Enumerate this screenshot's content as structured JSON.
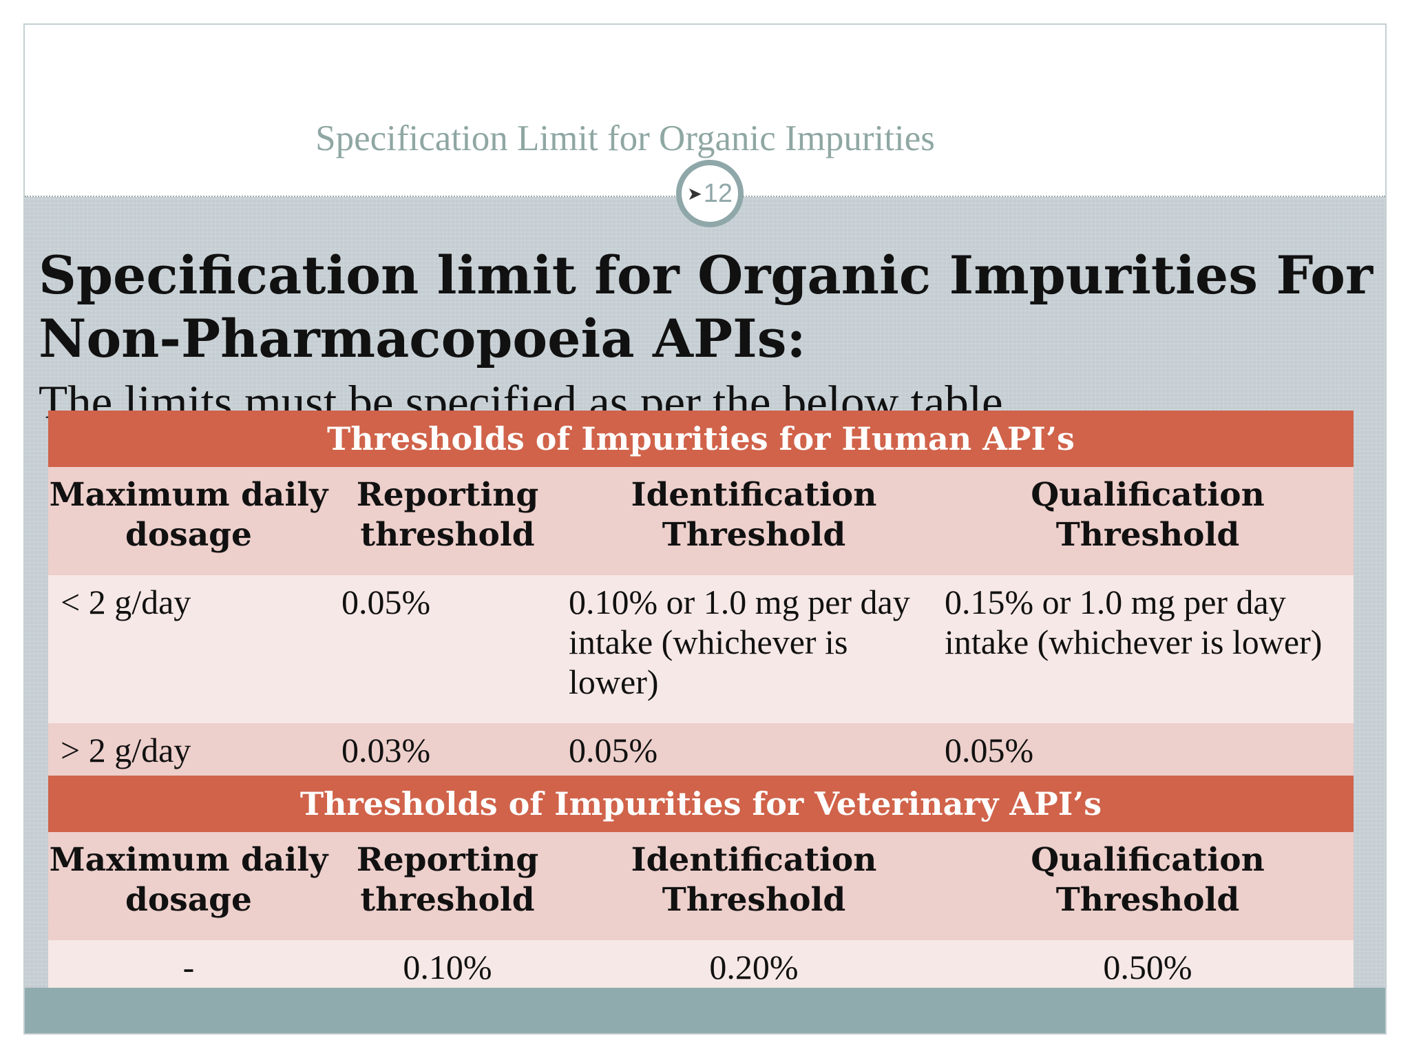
{
  "header": {
    "title": "Specification Limit for Organic Impurities",
    "page_number": "12"
  },
  "main": {
    "heading": "Specification limit for Organic Impurities For Non-Pharmacopoeia APIs:",
    "subheading": "The limits must be specified as per the below table"
  },
  "human_table": {
    "title": "Thresholds of Impurities for Human API’s",
    "columns": [
      "Maximum daily dosage",
      "Reporting threshold",
      "Identification Threshold",
      "Qualification Threshold"
    ],
    "rows": [
      [
        "< 2 g/day",
        "0.05%",
        "0.10% or 1.0 mg per day intake (whichever is lower)",
        "0.15% or 1.0 mg per day intake (whichever is lower)"
      ],
      [
        "> 2 g/day",
        "0.03%",
        "0.05%",
        "0.05%"
      ]
    ]
  },
  "vet_table": {
    "title": "Thresholds of Impurities for Veterinary API’s",
    "columns": [
      "Maximum daily dosage",
      "Reporting threshold",
      "Identification Threshold",
      "Qualification Threshold"
    ],
    "rows": [
      [
        "-",
        "0.10%",
        "0.20%",
        "0.50%"
      ]
    ]
  },
  "colors": {
    "table_header": "#d0634a",
    "row_dark": "#edcfcb",
    "row_light": "#f6e8e6",
    "body_bg": "#c4cdd2",
    "footer_band": "#8fabad",
    "header_title": "#8fa7a3"
  },
  "icons": {
    "page_number_bullet": "arrowhead-bullet-icon"
  }
}
